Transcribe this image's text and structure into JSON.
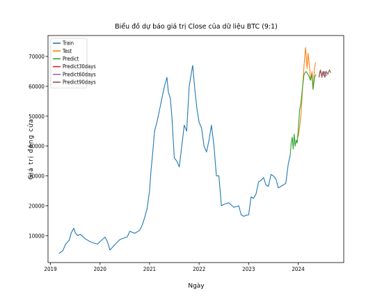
{
  "chart_data": {
    "type": "line",
    "title": "Biểu đồ dự báo giá trị Close của dữ liệu BTC (9:1)",
    "xlabel": "Ngày",
    "ylabel": "Giá trị đóng cửa",
    "xlim": [
      2018.95,
      2024.92
    ],
    "ylim": [
      1000,
      77000
    ],
    "x_ticks": [
      {
        "value": 2019,
        "label": "2019"
      },
      {
        "value": 2020,
        "label": "2020"
      },
      {
        "value": 2021,
        "label": "2021"
      },
      {
        "value": 2022,
        "label": "2022"
      },
      {
        "value": 2023,
        "label": "2023"
      },
      {
        "value": 2024,
        "label": "2024"
      }
    ],
    "y_ticks": [
      {
        "value": 10000,
        "label": "10000"
      },
      {
        "value": 20000,
        "label": "20000"
      },
      {
        "value": 30000,
        "label": "30000"
      },
      {
        "value": 40000,
        "label": "40000"
      },
      {
        "value": 50000,
        "label": "50000"
      },
      {
        "value": 60000,
        "label": "60000"
      },
      {
        "value": 70000,
        "label": "70000"
      }
    ],
    "grid": false,
    "legend_position": "top-left",
    "series": [
      {
        "name": "Train",
        "color": "#1f77b4",
        "x": [
          2019.17,
          2019.25,
          2019.3,
          2019.38,
          2019.42,
          2019.47,
          2019.5,
          2019.55,
          2019.6,
          2019.7,
          2019.8,
          2019.88,
          2019.95,
          2020.0,
          2020.1,
          2020.15,
          2020.2,
          2020.3,
          2020.4,
          2020.5,
          2020.55,
          2020.6,
          2020.7,
          2020.8,
          2020.85,
          2020.9,
          2020.95,
          2021.0,
          2021.03,
          2021.06,
          2021.1,
          2021.15,
          2021.2,
          2021.25,
          2021.3,
          2021.35,
          2021.38,
          2021.42,
          2021.45,
          2021.5,
          2021.55,
          2021.6,
          2021.65,
          2021.7,
          2021.75,
          2021.8,
          2021.83,
          2021.87,
          2021.92,
          2021.96,
          2022.0,
          2022.05,
          2022.1,
          2022.15,
          2022.2,
          2022.25,
          2022.3,
          2022.35,
          2022.4,
          2022.45,
          2022.5,
          2022.6,
          2022.7,
          2022.8,
          2022.85,
          2022.9,
          2022.95,
          2023.0,
          2023.05,
          2023.1,
          2023.15,
          2023.2,
          2023.25,
          2023.3,
          2023.35,
          2023.4,
          2023.45,
          2023.5,
          2023.55,
          2023.6,
          2023.65,
          2023.7,
          2023.75,
          2023.8,
          2023.84
        ],
        "values": [
          4000,
          5000,
          7000,
          8500,
          11000,
          12500,
          11000,
          10000,
          10500,
          9000,
          8000,
          7500,
          7200,
          8000,
          9500,
          8000,
          5200,
          7000,
          8700,
          9300,
          9600,
          11500,
          10800,
          11800,
          13500,
          16000,
          19000,
          25000,
          32000,
          37000,
          45000,
          48000,
          52000,
          56000,
          60000,
          63000,
          58000,
          56000,
          50000,
          36000,
          35000,
          33000,
          40000,
          47000,
          45000,
          60000,
          63000,
          67000,
          58000,
          52000,
          48000,
          46000,
          40000,
          38000,
          42000,
          47000,
          40000,
          30000,
          30000,
          20000,
          20500,
          21000,
          19500,
          20000,
          17000,
          16500,
          16800,
          17000,
          23000,
          22500,
          24000,
          28000,
          28500,
          29500,
          27000,
          26500,
          30500,
          30000,
          29000,
          26000,
          26500,
          27000,
          27500,
          34000,
          37000
        ]
      },
      {
        "name": "Test",
        "color": "#ff7f0e",
        "x": [
          2024.0,
          2024.02,
          2024.04,
          2024.06,
          2024.08,
          2024.1,
          2024.12,
          2024.15,
          2024.18,
          2024.2,
          2024.22,
          2024.25,
          2024.28,
          2024.3,
          2024.33,
          2024.35
        ],
        "values": [
          43000,
          45000,
          48000,
          51000,
          57000,
          62000,
          67000,
          73000,
          66000,
          71000,
          68000,
          62000,
          65000,
          59000,
          66000,
          68000
        ]
      },
      {
        "name": "Predict",
        "color": "#2ca02c",
        "x": [
          2023.84,
          2023.86,
          2023.88,
          2023.9,
          2023.92,
          2023.94,
          2023.96,
          2023.98,
          2024.0,
          2024.03,
          2024.06,
          2024.09,
          2024.12,
          2024.16,
          2024.2,
          2024.25,
          2024.28,
          2024.3,
          2024.33,
          2024.36
        ],
        "values": [
          37000,
          41000,
          43000,
          39000,
          44000,
          40000,
          42000,
          41000,
          45000,
          52000,
          55000,
          60000,
          64000,
          65000,
          64000,
          62000,
          64000,
          59000,
          63000,
          64000
        ]
      },
      {
        "name": "Predict30days",
        "color": "#d62728",
        "x": [
          2024.42,
          2024.44,
          2024.46,
          2024.48,
          2024.5
        ],
        "values": [
          63000,
          65000,
          64500,
          63000,
          65000
        ]
      },
      {
        "name": "Predict60days",
        "color": "#9467bd",
        "x": [
          2024.5,
          2024.52,
          2024.54,
          2024.56,
          2024.58
        ],
        "values": [
          65000,
          63500,
          65000,
          64000,
          63500
        ]
      },
      {
        "name": "Predict90days",
        "color": "#8c564b",
        "x": [
          2024.42,
          2024.45,
          2024.48,
          2024.51,
          2024.54,
          2024.57,
          2024.6,
          2024.63,
          2024.66
        ],
        "values": [
          63000,
          65500,
          63500,
          65000,
          63000,
          65000,
          64000,
          65500,
          64500
        ]
      }
    ]
  }
}
